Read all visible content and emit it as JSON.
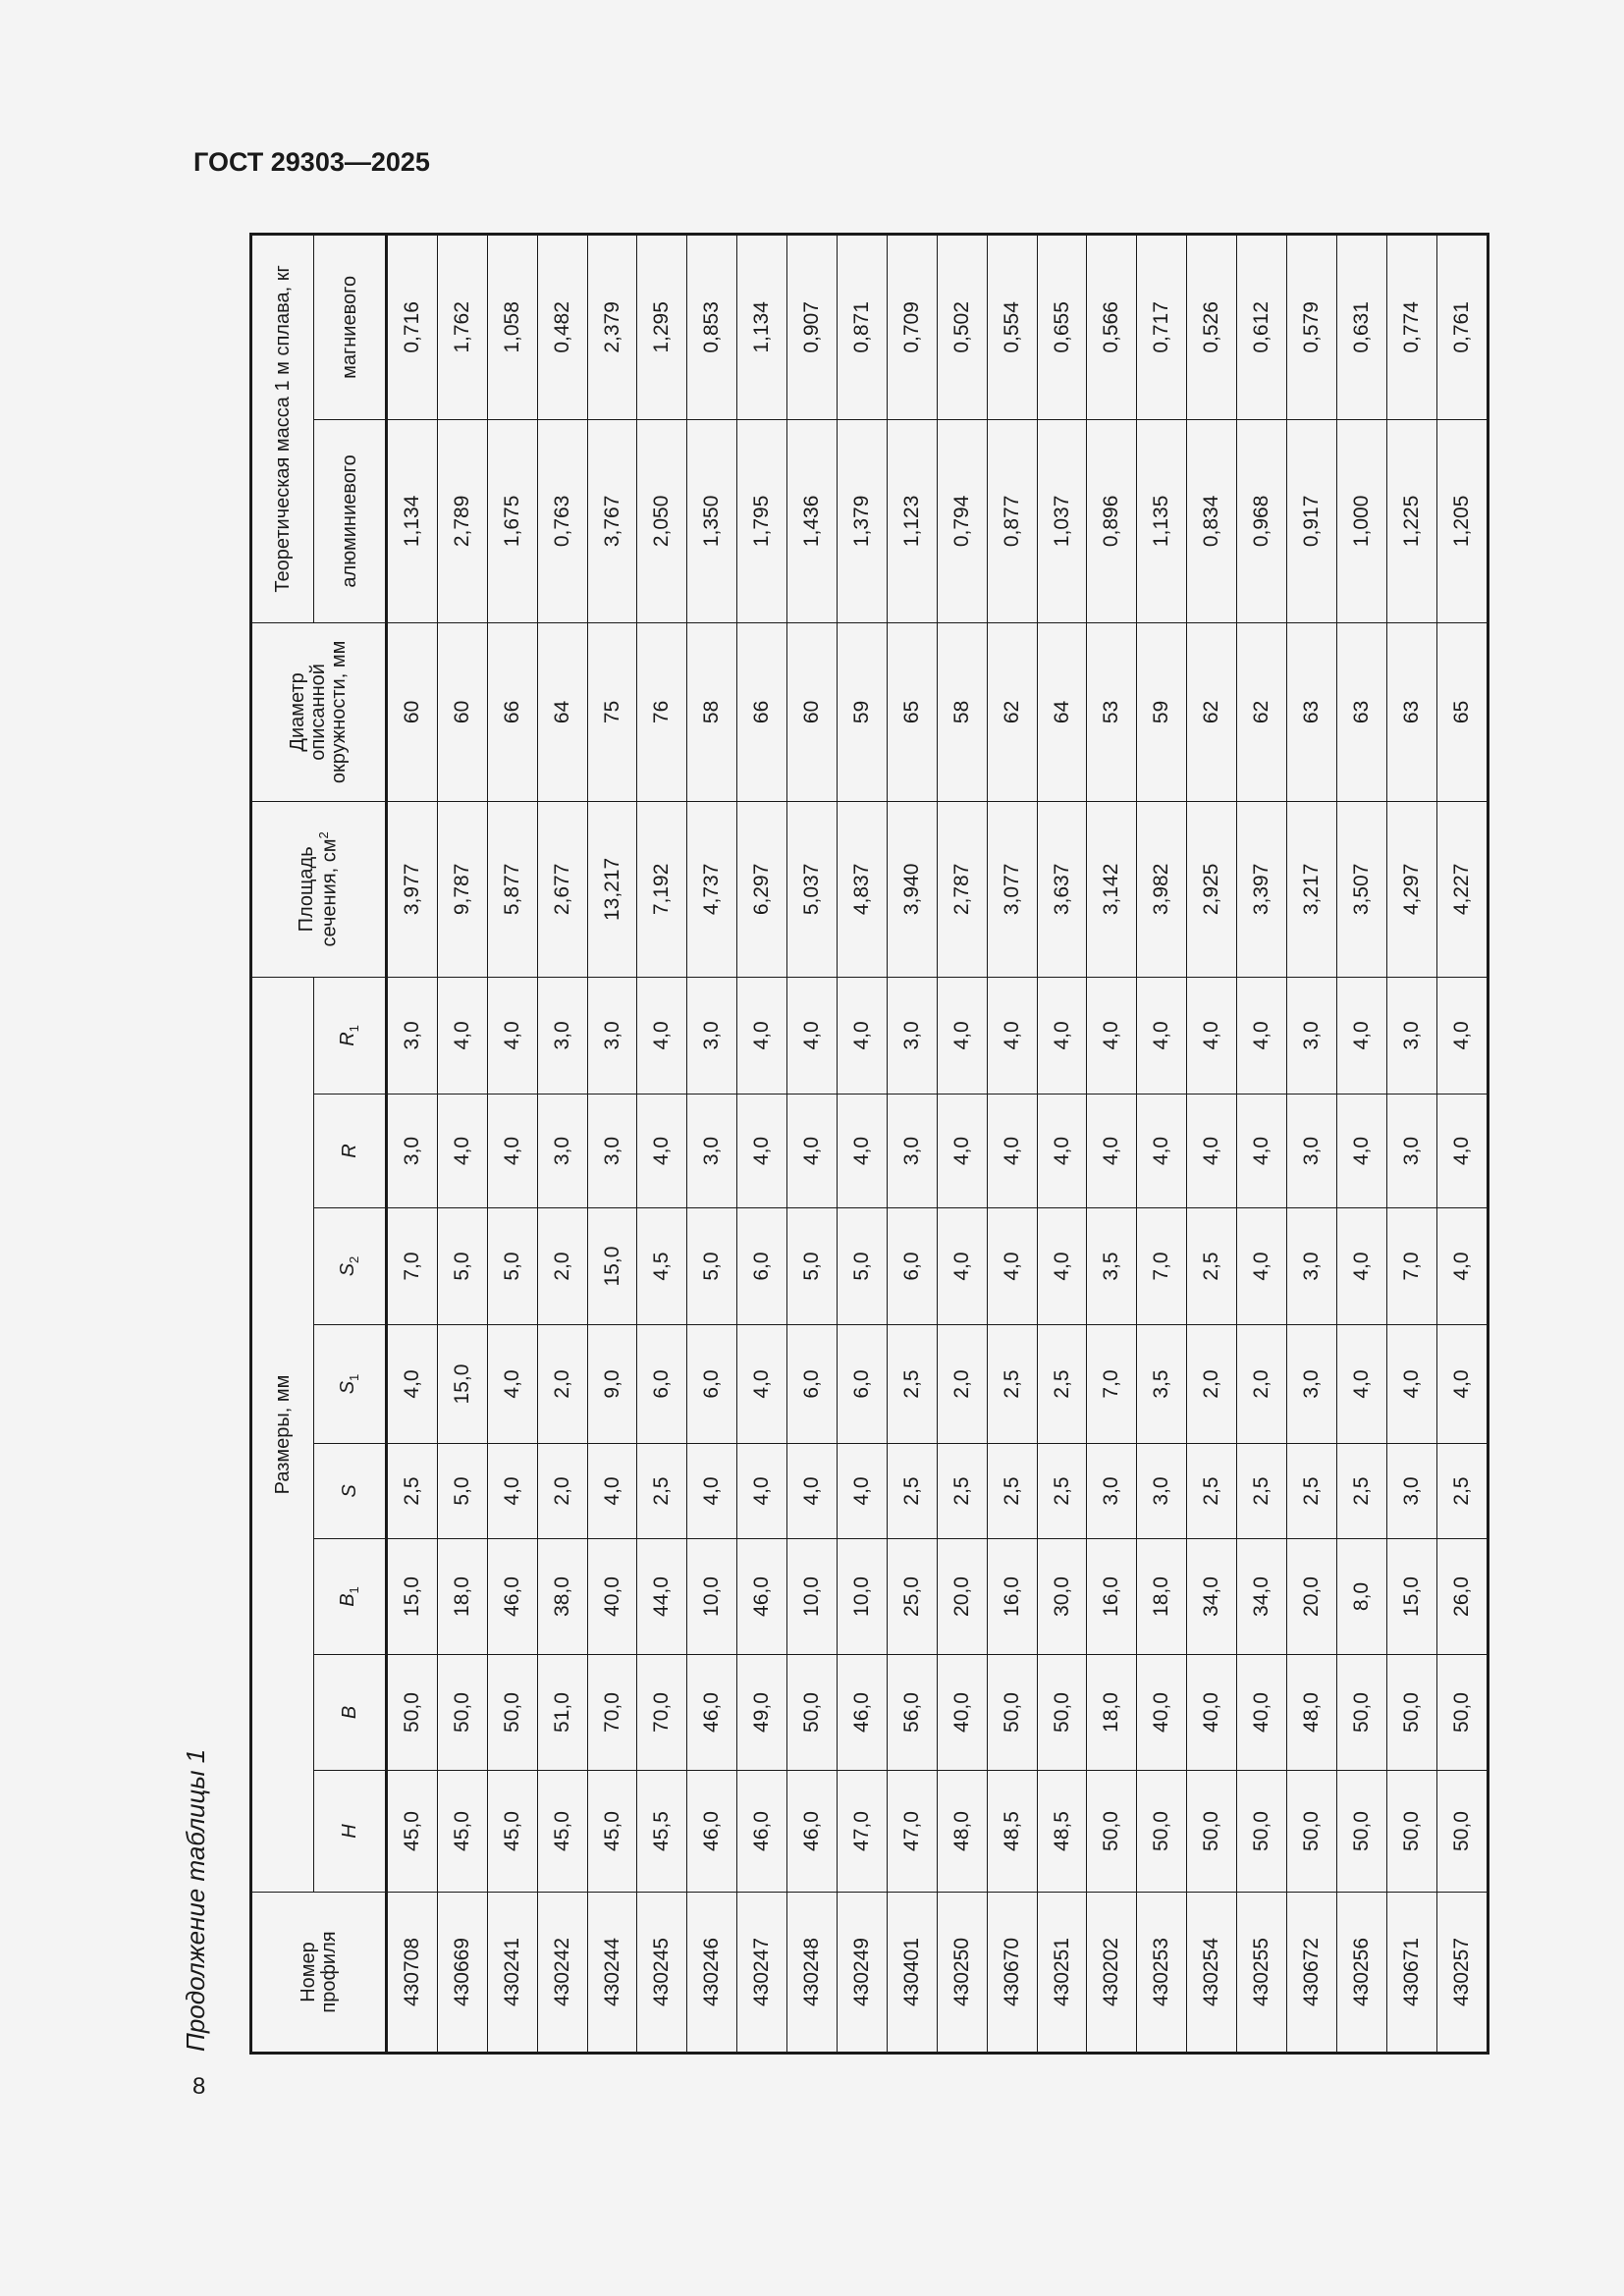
{
  "header": {
    "doc_title": "ГОСТ 29303—2025",
    "page_number": "8"
  },
  "caption": "Продолжение таблицы 1",
  "table": {
    "headers": {
      "profile_no": "Номер профиля",
      "dimensions": "Размеры, мм",
      "area": "Площадь сечения, см",
      "area_sup": "2",
      "diameter": "Диаметр описанной окружности, мм",
      "mass": "Теоретическая масса 1 м сплава, кг",
      "aluminum": "алюминиевого",
      "magnesium": "магниевого",
      "dims": [
        {
          "sym": "H",
          "sub": ""
        },
        {
          "sym": "B",
          "sub": ""
        },
        {
          "sym": "B",
          "sub": "1"
        },
        {
          "sym": "S",
          "sub": ""
        },
        {
          "sym": "S",
          "sub": "1"
        },
        {
          "sym": "S",
          "sub": "2"
        },
        {
          "sym": "R",
          "sub": ""
        },
        {
          "sym": "R",
          "sub": "1"
        }
      ]
    },
    "rows": [
      [
        "430708",
        "45,0",
        "50,0",
        "15,0",
        "2,5",
        "4,0",
        "7,0",
        "3,0",
        "3,0",
        "3,977",
        "60",
        "1,134",
        "0,716"
      ],
      [
        "430669",
        "45,0",
        "50,0",
        "18,0",
        "5,0",
        "15,0",
        "5,0",
        "4,0",
        "4,0",
        "9,787",
        "60",
        "2,789",
        "1,762"
      ],
      [
        "430241",
        "45,0",
        "50,0",
        "46,0",
        "4,0",
        "4,0",
        "5,0",
        "4,0",
        "4,0",
        "5,877",
        "66",
        "1,675",
        "1,058"
      ],
      [
        "430242",
        "45,0",
        "51,0",
        "38,0",
        "2,0",
        "2,0",
        "2,0",
        "3,0",
        "3,0",
        "2,677",
        "64",
        "0,763",
        "0,482"
      ],
      [
        "430244",
        "45,0",
        "70,0",
        "40,0",
        "4,0",
        "9,0",
        "15,0",
        "3,0",
        "3,0",
        "13,217",
        "75",
        "3,767",
        "2,379"
      ],
      [
        "430245",
        "45,5",
        "70,0",
        "44,0",
        "2,5",
        "6,0",
        "4,5",
        "4,0",
        "4,0",
        "7,192",
        "76",
        "2,050",
        "1,295"
      ],
      [
        "430246",
        "46,0",
        "46,0",
        "10,0",
        "4,0",
        "6,0",
        "5,0",
        "3,0",
        "3,0",
        "4,737",
        "58",
        "1,350",
        "0,853"
      ],
      [
        "430247",
        "46,0",
        "49,0",
        "46,0",
        "4,0",
        "4,0",
        "6,0",
        "4,0",
        "4,0",
        "6,297",
        "66",
        "1,795",
        "1,134"
      ],
      [
        "430248",
        "46,0",
        "50,0",
        "10,0",
        "4,0",
        "6,0",
        "5,0",
        "4,0",
        "4,0",
        "5,037",
        "60",
        "1,436",
        "0,907"
      ],
      [
        "430249",
        "47,0",
        "46,0",
        "10,0",
        "4,0",
        "6,0",
        "5,0",
        "4,0",
        "4,0",
        "4,837",
        "59",
        "1,379",
        "0,871"
      ],
      [
        "430401",
        "47,0",
        "56,0",
        "25,0",
        "2,5",
        "2,5",
        "6,0",
        "3,0",
        "3,0",
        "3,940",
        "65",
        "1,123",
        "0,709"
      ],
      [
        "430250",
        "48,0",
        "40,0",
        "20,0",
        "2,5",
        "2,0",
        "4,0",
        "4,0",
        "4,0",
        "2,787",
        "58",
        "0,794",
        "0,502"
      ],
      [
        "430670",
        "48,5",
        "50,0",
        "16,0",
        "2,5",
        "2,5",
        "4,0",
        "4,0",
        "4,0",
        "3,077",
        "62",
        "0,877",
        "0,554"
      ],
      [
        "430251",
        "48,5",
        "50,0",
        "30,0",
        "2,5",
        "2,5",
        "4,0",
        "4,0",
        "4,0",
        "3,637",
        "64",
        "1,037",
        "0,655"
      ],
      [
        "430202",
        "50,0",
        "18,0",
        "16,0",
        "3,0",
        "7,0",
        "3,5",
        "4,0",
        "4,0",
        "3,142",
        "53",
        "0,896",
        "0,566"
      ],
      [
        "430253",
        "50,0",
        "40,0",
        "18,0",
        "3,0",
        "3,5",
        "7,0",
        "4,0",
        "4,0",
        "3,982",
        "59",
        "1,135",
        "0,717"
      ],
      [
        "430254",
        "50,0",
        "40,0",
        "34,0",
        "2,5",
        "2,0",
        "2,5",
        "4,0",
        "4,0",
        "2,925",
        "62",
        "0,834",
        "0,526"
      ],
      [
        "430255",
        "50,0",
        "40,0",
        "34,0",
        "2,5",
        "2,0",
        "4,0",
        "4,0",
        "4,0",
        "3,397",
        "62",
        "0,968",
        "0,612"
      ],
      [
        "430672",
        "50,0",
        "48,0",
        "20,0",
        "2,5",
        "3,0",
        "3,0",
        "3,0",
        "3,0",
        "3,217",
        "63",
        "0,917",
        "0,579"
      ],
      [
        "430256",
        "50,0",
        "50,0",
        "8,0",
        "2,5",
        "4,0",
        "4,0",
        "4,0",
        "4,0",
        "3,507",
        "63",
        "1,000",
        "0,631"
      ],
      [
        "430671",
        "50,0",
        "50,0",
        "15,0",
        "3,0",
        "4,0",
        "7,0",
        "3,0",
        "3,0",
        "4,297",
        "63",
        "1,225",
        "0,774"
      ],
      [
        "430257",
        "50,0",
        "50,0",
        "26,0",
        "2,5",
        "4,0",
        "4,0",
        "4,0",
        "4,0",
        "4,227",
        "65",
        "1,205",
        "0,761"
      ]
    ]
  }
}
